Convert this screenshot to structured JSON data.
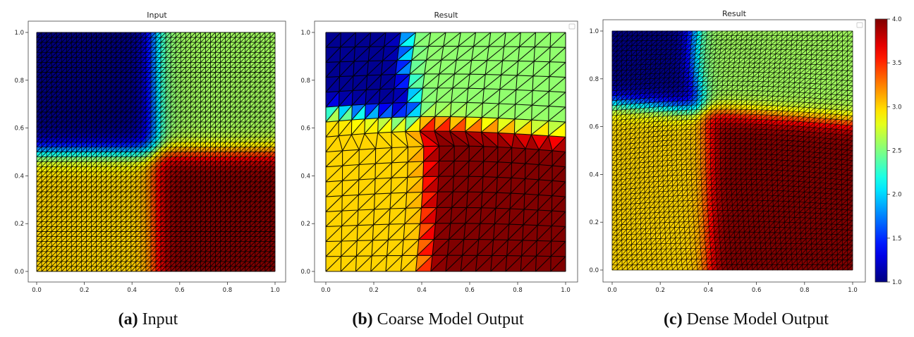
{
  "panels": [
    {
      "title": "Input",
      "caption_label": "(a)",
      "caption_text": "Input",
      "grid": 48,
      "field": "input"
    },
    {
      "title": "Result",
      "caption_label": "(b)",
      "caption_text": "Coarse Model Output",
      "grid": 16,
      "field": "coarse"
    },
    {
      "title": "Result",
      "caption_label": "(c)",
      "caption_text": "Dense Model Output",
      "grid": 48,
      "field": "dense"
    }
  ],
  "chart_data": [
    {
      "type": "heatmap",
      "title": "Input",
      "xlabel": "",
      "ylabel": "",
      "xlim": [
        0,
        1
      ],
      "ylim": [
        0,
        1
      ],
      "xticks": [
        "0.0",
        "0.2",
        "0.4",
        "0.6",
        "0.8",
        "1.0"
      ],
      "yticks": [
        "0.0",
        "0.2",
        "0.4",
        "0.6",
        "0.8",
        "1.0"
      ],
      "regions": [
        {
          "x": [
            0.0,
            0.5
          ],
          "y": [
            0.5,
            1.0
          ],
          "value": 1.0
        },
        {
          "x": [
            0.5,
            1.0
          ],
          "y": [
            0.5,
            1.0
          ],
          "value": 2.6
        },
        {
          "x": [
            0.0,
            0.5
          ],
          "y": [
            0.0,
            0.5
          ],
          "value": 3.0
        },
        {
          "x": [
            0.5,
            1.0
          ],
          "y": [
            0.0,
            0.5
          ],
          "value": 4.0
        }
      ]
    },
    {
      "type": "heatmap",
      "title": "Result",
      "xlabel": "",
      "ylabel": "",
      "xlim": [
        0,
        1
      ],
      "ylim": [
        0,
        1
      ],
      "xticks": [
        "0.0",
        "0.2",
        "0.4",
        "0.6",
        "0.8",
        "1.0"
      ],
      "yticks": [
        "0.0",
        "0.2",
        "0.4",
        "0.6",
        "0.8",
        "1.0"
      ],
      "regions": [
        {
          "x": [
            0.0,
            0.35
          ],
          "y": [
            0.72,
            1.0
          ],
          "value": 1.1
        },
        {
          "x": [
            0.35,
            1.0
          ],
          "y": [
            0.62,
            1.0
          ],
          "value": 2.6
        },
        {
          "x": [
            0.0,
            0.4
          ],
          "y": [
            0.0,
            0.62
          ],
          "value": 3.0
        },
        {
          "x": [
            0.4,
            1.0
          ],
          "y": [
            0.0,
            0.6
          ],
          "value": 4.0
        }
      ]
    },
    {
      "type": "heatmap",
      "title": "Result",
      "xlabel": "",
      "ylabel": "",
      "xlim": [
        0,
        1
      ],
      "ylim": [
        0,
        1
      ],
      "xticks": [
        "0.0",
        "0.2",
        "0.4",
        "0.6",
        "0.8",
        "1.0"
      ],
      "yticks": [
        "0.0",
        "0.2",
        "0.4",
        "0.6",
        "0.8",
        "1.0"
      ],
      "regions": [
        {
          "x": [
            0.0,
            0.35
          ],
          "y": [
            0.72,
            1.0
          ],
          "value": 1.0
        },
        {
          "x": [
            0.35,
            1.0
          ],
          "y": [
            0.64,
            1.0
          ],
          "value": 2.6
        },
        {
          "x": [
            0.0,
            0.4
          ],
          "y": [
            0.0,
            0.68
          ],
          "value": 3.0
        },
        {
          "x": [
            0.42,
            1.0
          ],
          "y": [
            0.0,
            0.64
          ],
          "value": 4.0
        }
      ]
    }
  ],
  "colorbar": {
    "min": 1.0,
    "max": 4.0,
    "colormap": "jet",
    "ticks": [
      "1.0",
      "1.5",
      "2.0",
      "2.5",
      "3.0",
      "3.5",
      "4.0"
    ]
  }
}
